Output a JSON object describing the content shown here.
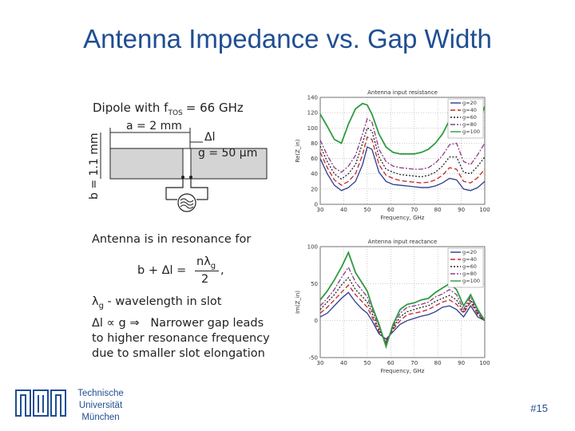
{
  "slide": {
    "title": "Antenna Impedance vs. Gap Width",
    "university": [
      "Technische",
      "Universität",
      "München"
    ],
    "slide_number": "#15"
  },
  "diagram": {
    "heading": "Dipole with f",
    "heading_sub": "TOS",
    "heading_val": "= 66 GHz",
    "a_label": "a = 2 mm",
    "dl_label": "Δl",
    "g_label": "g = 50 μm",
    "b_label": "b = 1.1 mm"
  },
  "text": {
    "resonance": "Antenna is in resonance for",
    "formula_lhs": "b + Δl =",
    "formula_num": "nλ",
    "formula_num_sub": "g",
    "formula_den": "2",
    "formula_end": ",",
    "lambda_def": "λ",
    "lambda_sub": "g",
    "lambda_rest": " - wavelength in slot",
    "prop_lhs": "Δl ∝ g ⇒",
    "prop_rest": "Narrower gap leads",
    "line2": "to higher resonance frequency",
    "line3": "due to smaller slot elongation"
  },
  "colors": {
    "title": "#1f4e93",
    "g20": "#2b3d8f",
    "g40": "#c0282e",
    "g60": "#222222",
    "g80": "#8e3b86",
    "g100": "#2e9b3f"
  },
  "chart_data": [
    {
      "type": "line",
      "title": "Antenna input resistance",
      "xlabel": "Frequency, GHz",
      "ylabel": "Re(Z_in)",
      "xlim": [
        30,
        100
      ],
      "ylim": [
        0,
        140
      ],
      "xticks": [
        "30",
        "40",
        "50",
        "60",
        "70",
        "80",
        "90",
        "100"
      ],
      "yticks": [
        "0",
        "20",
        "40",
        "60",
        "80",
        "100",
        "120",
        "140"
      ],
      "legend_position": "top-right",
      "x": [
        30,
        33,
        36,
        39,
        42,
        45,
        48,
        50,
        52,
        55,
        58,
        61,
        64,
        67,
        70,
        73,
        76,
        79,
        82,
        85,
        88,
        91,
        94,
        97,
        100
      ],
      "series": [
        {
          "name": "g=20",
          "values": [
            60,
            40,
            25,
            18,
            22,
            30,
            52,
            75,
            72,
            42,
            30,
            26,
            25,
            24,
            23,
            22,
            22,
            24,
            28,
            34,
            32,
            20,
            18,
            22,
            30
          ]
        },
        {
          "name": "g=40",
          "values": [
            68,
            48,
            32,
            25,
            30,
            40,
            65,
            88,
            85,
            52,
            38,
            34,
            31,
            30,
            29,
            28,
            29,
            32,
            38,
            48,
            46,
            30,
            28,
            35,
            46
          ]
        },
        {
          "name": "g=60",
          "values": [
            76,
            56,
            40,
            33,
            40,
            52,
            80,
            100,
            96,
            62,
            46,
            42,
            39,
            38,
            37,
            36,
            38,
            42,
            50,
            62,
            62,
            42,
            40,
            50,
            62
          ]
        },
        {
          "name": "g=80",
          "values": [
            84,
            64,
            48,
            42,
            50,
            64,
            92,
            112,
            108,
            72,
            56,
            50,
            48,
            47,
            46,
            46,
            48,
            54,
            64,
            78,
            80,
            56,
            52,
            65,
            80
          ]
        },
        {
          "name": "g=100",
          "values": [
            118,
            102,
            85,
            80,
            105,
            125,
            132,
            130,
            118,
            92,
            75,
            68,
            66,
            66,
            66,
            68,
            72,
            80,
            92,
            110,
            128,
            95,
            88,
            105,
            128
          ]
        }
      ]
    },
    {
      "type": "line",
      "title": "Antenna input reactance",
      "xlabel": "Frequency, GHz",
      "ylabel": "Im(Z_in)",
      "xlim": [
        30,
        100
      ],
      "ylim": [
        -50,
        100
      ],
      "xticks": [
        "30",
        "40",
        "50",
        "60",
        "70",
        "80",
        "90",
        "100"
      ],
      "yticks": [
        "-50",
        "0",
        "50",
        "100"
      ],
      "legend_position": "top-right",
      "x": [
        30,
        33,
        36,
        39,
        42,
        45,
        48,
        50,
        52,
        55,
        58,
        61,
        64,
        67,
        70,
        73,
        76,
        79,
        82,
        85,
        88,
        91,
        94,
        97,
        100
      ],
      "series": [
        {
          "name": "g=20",
          "values": [
            5,
            10,
            20,
            30,
            38,
            25,
            15,
            10,
            0,
            -18,
            -25,
            -15,
            -5,
            0,
            3,
            6,
            8,
            12,
            18,
            20,
            15,
            5,
            20,
            5,
            0
          ]
        },
        {
          "name": "g=40",
          "values": [
            10,
            18,
            28,
            38,
            48,
            35,
            25,
            18,
            5,
            -15,
            -28,
            -12,
            0,
            8,
            10,
            12,
            15,
            20,
            25,
            28,
            22,
            10,
            25,
            8,
            0
          ]
        },
        {
          "name": "g=60",
          "values": [
            15,
            25,
            35,
            48,
            58,
            42,
            32,
            25,
            10,
            -12,
            -30,
            -10,
            5,
            12,
            15,
            18,
            20,
            26,
            30,
            34,
            28,
            12,
            28,
            10,
            0
          ]
        },
        {
          "name": "g=80",
          "values": [
            20,
            30,
            42,
            58,
            72,
            52,
            40,
            32,
            15,
            -8,
            -32,
            -8,
            10,
            18,
            20,
            22,
            25,
            32,
            36,
            42,
            35,
            15,
            32,
            12,
            0
          ]
        },
        {
          "name": "g=100",
          "values": [
            28,
            40,
            55,
            72,
            92,
            65,
            50,
            40,
            20,
            -5,
            -35,
            -5,
            15,
            22,
            24,
            28,
            30,
            38,
            44,
            50,
            42,
            20,
            35,
            15,
            0
          ]
        }
      ]
    }
  ]
}
